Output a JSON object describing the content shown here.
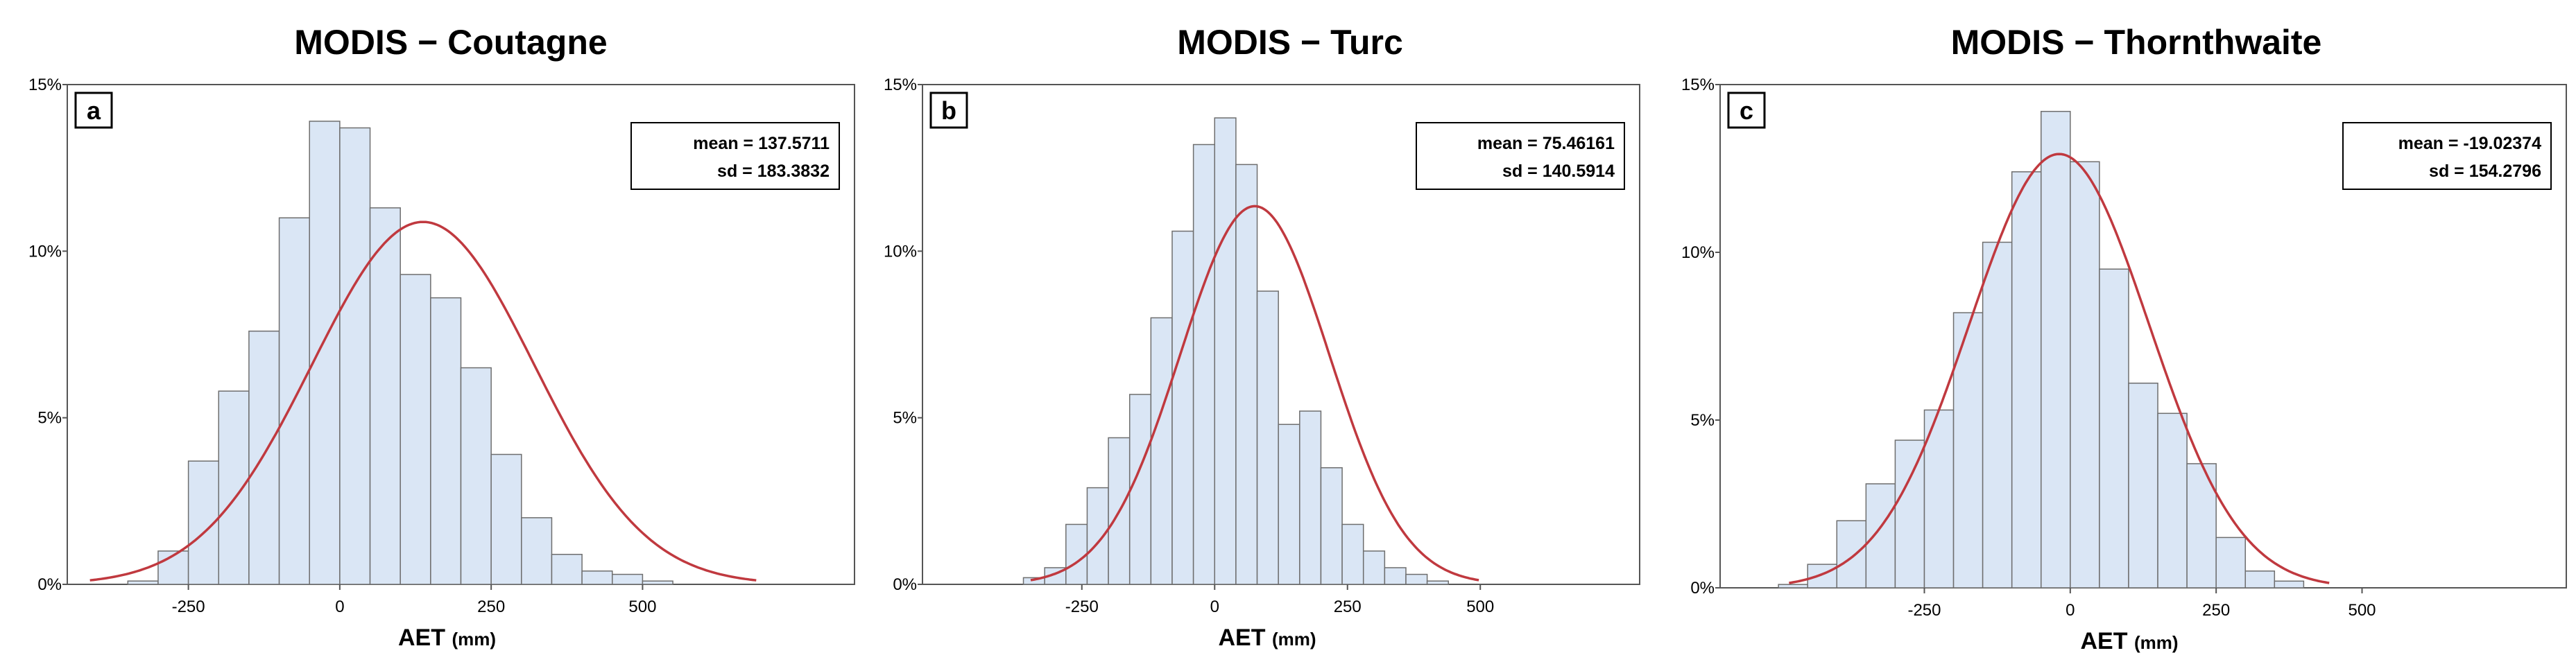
{
  "chart_data": [
    {
      "type": "bar",
      "panel": "a",
      "title": "MODIS − Coutagne",
      "xlabel": "AET",
      "xlabel_unit": "(mm)",
      "ylabel": "",
      "xlim": [
        -450,
        850
      ],
      "ylim": [
        0,
        15
      ],
      "xticks": [
        -250,
        0,
        250,
        500
      ],
      "xtick_labels": [
        "-250",
        "0",
        "250",
        "500"
      ],
      "yticks": [
        0,
        5,
        10,
        15
      ],
      "ytick_labels": [
        "0%",
        "5%",
        "10%",
        "15%"
      ],
      "bin_width": 50,
      "bins_start": [
        -350,
        -300,
        -250,
        -200,
        -150,
        -100,
        -50,
        0,
        50,
        100,
        150,
        200,
        250,
        300,
        350,
        400,
        450,
        500,
        550,
        600,
        650
      ],
      "values": [
        0.1,
        1.0,
        3.7,
        5.8,
        7.6,
        11.0,
        13.9,
        13.7,
        11.3,
        9.3,
        8.6,
        6.5,
        3.9,
        2.0,
        0.9,
        0.4,
        0.3,
        0.1,
        0.0,
        0.0,
        0.0
      ],
      "curve_color": "#c0393f",
      "bar_color": "#dae6f5",
      "stats": {
        "mean": "mean = 137.5711",
        "sd": "sd = 183.3832"
      },
      "legend_position": "top-right",
      "grid": false
    },
    {
      "type": "bar",
      "panel": "b",
      "title": "MODIS − Turc",
      "xlabel": "AET",
      "xlabel_unit": "(mm)",
      "ylabel": "",
      "xlim": [
        -550,
        800
      ],
      "ylim": [
        0,
        15
      ],
      "xticks": [
        -250,
        0,
        250,
        500
      ],
      "xtick_labels": [
        "-250",
        "0",
        "250",
        "500"
      ],
      "yticks": [
        0,
        5,
        10,
        15
      ],
      "ytick_labels": [
        "0%",
        "5%",
        "10%",
        "15%"
      ],
      "bin_width": 40,
      "bins_start": [
        -360,
        -320,
        -280,
        -240,
        -200,
        -160,
        -120,
        -80,
        -40,
        0,
        40,
        80,
        120,
        160,
        200,
        240,
        280,
        320,
        360,
        400,
        440
      ],
      "values": [
        0.2,
        0.5,
        1.8,
        2.9,
        4.4,
        5.7,
        8.0,
        10.6,
        13.2,
        14.0,
        12.6,
        8.8,
        4.8,
        5.2,
        3.5,
        1.8,
        1.0,
        0.5,
        0.3,
        0.1,
        0.0
      ],
      "curve_color": "#c0393f",
      "bar_color": "#dae6f5",
      "stats": {
        "mean": "mean = 75.46161",
        "sd": "sd = 140.5914"
      },
      "legend_position": "top-right",
      "grid": false
    },
    {
      "type": "bar",
      "panel": "c",
      "title": "MODIS − Thornthwaite",
      "xlabel": "AET",
      "xlabel_unit": "(mm)",
      "ylabel": "",
      "xlim": [
        -600,
        850
      ],
      "ylim": [
        0,
        15
      ],
      "xticks": [
        -250,
        0,
        250,
        500
      ],
      "xtick_labels": [
        "-250",
        "0",
        "250",
        "500"
      ],
      "yticks": [
        0,
        5,
        10,
        15
      ],
      "ytick_labels": [
        "0%",
        "5%",
        "10%",
        "15%"
      ],
      "bin_width": 50,
      "bins_start": [
        -500,
        -450,
        -400,
        -350,
        -300,
        -250,
        -200,
        -150,
        -100,
        -50,
        0,
        50,
        100,
        150,
        200,
        250,
        300,
        350
      ],
      "values": [
        0.1,
        0.7,
        2.0,
        3.1,
        4.4,
        5.3,
        8.2,
        10.3,
        12.4,
        14.2,
        12.7,
        9.5,
        6.1,
        5.2,
        3.7,
        1.5,
        0.5,
        0.2
      ],
      "curve_color": "#c0393f",
      "bar_color": "#dae6f5",
      "stats": {
        "mean": "mean = -19.02374",
        "sd": "sd = 154.2796"
      },
      "legend_position": "top-right",
      "grid": false
    }
  ]
}
